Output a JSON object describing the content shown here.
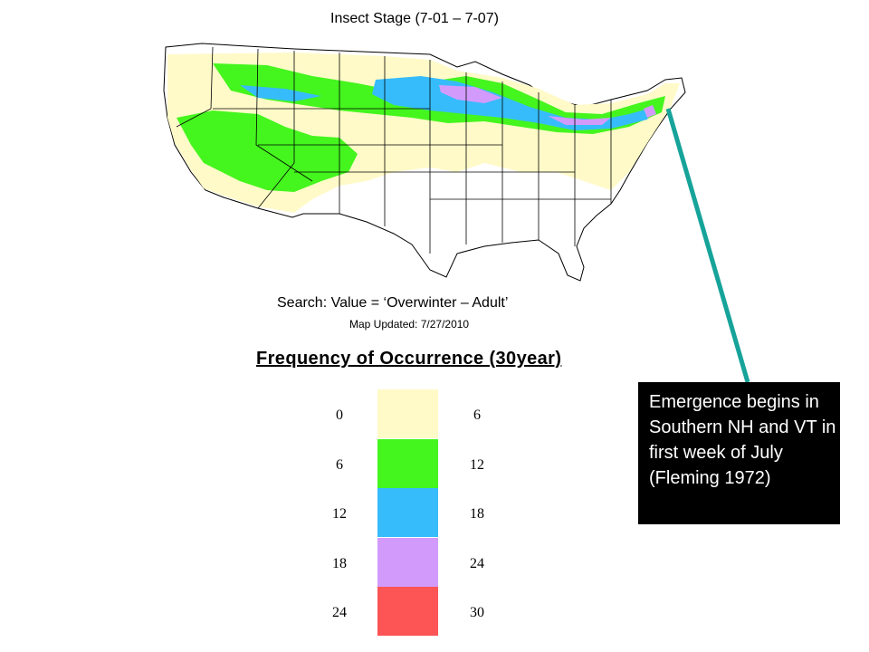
{
  "map": {
    "title": "Insect Stage (7-01 – 7-07)",
    "search_label": "Search: Value = ‘Overwinter – Adult’",
    "updated": "Map Updated: 7/27/2010"
  },
  "legend": {
    "title": "Frequency of Occurrence (30year)",
    "classes": [
      {
        "low": "0",
        "high": "6",
        "color": "#fffac8"
      },
      {
        "low": "6",
        "high": "12",
        "color": "#44f51e"
      },
      {
        "low": "12",
        "high": "18",
        "color": "#36bcfb"
      },
      {
        "low": "18",
        "high": "24",
        "color": "#d29bfb"
      },
      {
        "low": "24",
        "high": "30",
        "color": "#fd5455"
      }
    ]
  },
  "callout": {
    "text": "Emergence begins in Southern NH and VT in first week of July (Fleming 1972)",
    "line_color": "#16a39a"
  }
}
